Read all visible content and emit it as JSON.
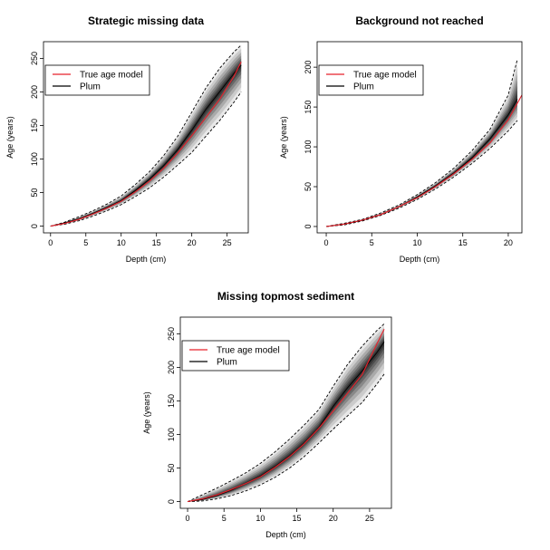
{
  "chart_data": [
    {
      "type": "line",
      "title": "Strategic missing data",
      "xlabel": "Depth (cm)",
      "ylabel": "Age (years)",
      "xlim": [
        -1,
        28
      ],
      "ylim": [
        -10,
        275
      ],
      "xticks": [
        0,
        5,
        10,
        15,
        20,
        25
      ],
      "yticks": [
        0,
        50,
        100,
        150,
        200,
        250
      ],
      "grid": false,
      "legend_position": "top-left",
      "series": [
        {
          "name": "True age model",
          "color": "#e8202a",
          "style": "solid",
          "x": [
            0,
            2,
            4,
            6,
            8,
            10,
            12,
            14,
            16,
            18,
            20,
            22,
            24,
            26,
            27
          ],
          "y": [
            0,
            4,
            10,
            18,
            27,
            37,
            51,
            67,
            86,
            109,
            135,
            162,
            190,
            224,
            245
          ]
        },
        {
          "name": "Plum",
          "color": "#000000",
          "style": "solid",
          "x": [
            0,
            2,
            4,
            6,
            8,
            10,
            12,
            14,
            16,
            18,
            20,
            22,
            24,
            26,
            27
          ],
          "y": [
            0,
            5,
            11,
            19,
            28,
            38,
            53,
            70,
            90,
            114,
            143,
            174,
            201,
            228,
            240
          ]
        }
      ],
      "band_lower": {
        "x": [
          0,
          2,
          4,
          6,
          8,
          10,
          12,
          14,
          16,
          18,
          20,
          22,
          24,
          26,
          27
        ],
        "y": [
          0,
          3,
          8,
          15,
          23,
          32,
          44,
          57,
          73,
          91,
          110,
          134,
          158,
          185,
          200
        ]
      },
      "band_upper": {
        "x": [
          0,
          2,
          4,
          6,
          8,
          10,
          12,
          14,
          16,
          18,
          20,
          22,
          24,
          26,
          27
        ],
        "y": [
          0,
          6,
          14,
          23,
          33,
          45,
          62,
          81,
          105,
          134,
          170,
          206,
          236,
          260,
          270
        ]
      }
    },
    {
      "type": "line",
      "title": "Background not reached",
      "xlabel": "Depth (cm)",
      "ylabel": "Age (years)",
      "xlim": [
        -1,
        21.5
      ],
      "ylim": [
        -8,
        232
      ],
      "xticks": [
        0,
        5,
        10,
        15,
        20
      ],
      "yticks": [
        0,
        50,
        100,
        150,
        200
      ],
      "grid": false,
      "legend_position": "top-left",
      "series": [
        {
          "name": "True age model",
          "color": "#e8202a",
          "style": "solid",
          "x": [
            0,
            2,
            4,
            6,
            8,
            10,
            12,
            14,
            16,
            18,
            20,
            21.5
          ],
          "y": [
            0,
            3,
            8,
            15,
            25,
            36,
            50,
            66,
            84,
            105,
            134,
            165
          ]
        },
        {
          "name": "Plum",
          "color": "#000000",
          "style": "solid",
          "x": [
            0,
            2,
            4,
            6,
            8,
            10,
            12,
            14,
            16,
            18,
            20,
            21
          ],
          "y": [
            0,
            3,
            8,
            15,
            25,
            37,
            51,
            67,
            86,
            110,
            140,
            160
          ]
        }
      ],
      "band_lower": {
        "x": [
          0,
          2,
          4,
          6,
          8,
          10,
          12,
          14,
          16,
          18,
          20,
          21
        ],
        "y": [
          0,
          2,
          7,
          14,
          23,
          34,
          47,
          62,
          79,
          98,
          120,
          133
        ]
      },
      "band_upper": {
        "x": [
          0,
          2,
          4,
          6,
          8,
          10,
          12,
          14,
          16,
          18,
          20,
          21
        ],
        "y": [
          0,
          4,
          9,
          17,
          27,
          40,
          55,
          73,
          95,
          122,
          165,
          210
        ]
      }
    },
    {
      "type": "line",
      "title": "Missing topmost sediment",
      "xlabel": "Depth (cm)",
      "ylabel": "Age (years)",
      "xlim": [
        -1,
        28
      ],
      "ylim": [
        -10,
        275
      ],
      "xticks": [
        0,
        5,
        10,
        15,
        20,
        25
      ],
      "yticks": [
        0,
        50,
        100,
        150,
        200,
        250
      ],
      "grid": false,
      "legend_position": "top-left",
      "series": [
        {
          "name": "True age model",
          "color": "#e8202a",
          "style": "solid",
          "x": [
            0,
            2,
            4,
            6,
            8,
            10,
            12,
            14,
            16,
            18,
            20,
            22,
            24,
            26,
            27
          ],
          "y": [
            0,
            4,
            10,
            18,
            27,
            37,
            51,
            67,
            86,
            109,
            135,
            162,
            190,
            235,
            257
          ]
        },
        {
          "name": "Plum",
          "color": "#000000",
          "style": "solid",
          "x": [
            0,
            2,
            4,
            6,
            8,
            10,
            12,
            14,
            16,
            18,
            20,
            22,
            24,
            26,
            27
          ],
          "y": [
            0,
            3,
            9,
            17,
            27,
            38,
            52,
            68,
            87,
            110,
            142,
            170,
            195,
            222,
            238
          ]
        }
      ],
      "band_lower": {
        "x": [
          0,
          2,
          4,
          6,
          8,
          10,
          12,
          14,
          16,
          18,
          20,
          22,
          24,
          26,
          27
        ],
        "y": [
          0,
          1,
          4,
          9,
          16,
          25,
          36,
          50,
          67,
          87,
          108,
          128,
          148,
          175,
          190
        ]
      },
      "band_upper": {
        "x": [
          0,
          2,
          4,
          6,
          8,
          10,
          12,
          14,
          16,
          18,
          20,
          22,
          24,
          26,
          27
        ],
        "y": [
          0,
          10,
          20,
          31,
          43,
          57,
          74,
          93,
          114,
          137,
          172,
          205,
          232,
          255,
          265
        ]
      }
    }
  ]
}
